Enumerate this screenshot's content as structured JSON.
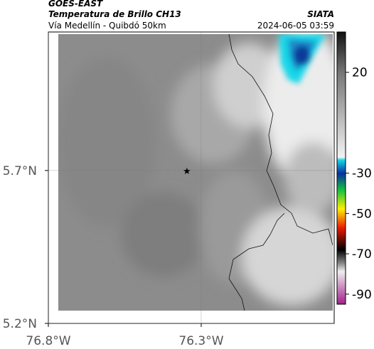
{
  "header": {
    "satellite": "GOES-EAST",
    "product": "Temperatura de Brillo CH13",
    "source": "SIATA",
    "region": "Vía Medellín - Quibdó 50km",
    "datetime": "2024-06-05 03:59"
  },
  "map": {
    "xlim": [
      -76.8,
      -75.865
    ],
    "ylim": [
      5.2,
      6.153
    ],
    "xticks": [
      {
        "value": -76.8,
        "label": "76.8°W"
      },
      {
        "value": -76.3,
        "label": "76.3°W"
      }
    ],
    "yticks": [
      {
        "value": 5.7,
        "label": "5.7°N"
      },
      {
        "value": 5.2,
        "label": "5.2°N"
      }
    ],
    "grid": true,
    "station": {
      "lon": -76.347,
      "lat": 5.7
    }
  },
  "colorbar": {
    "clim": [
      -95,
      40
    ],
    "ticks": [
      20,
      -30,
      -50,
      -70,
      -90
    ]
  }
}
